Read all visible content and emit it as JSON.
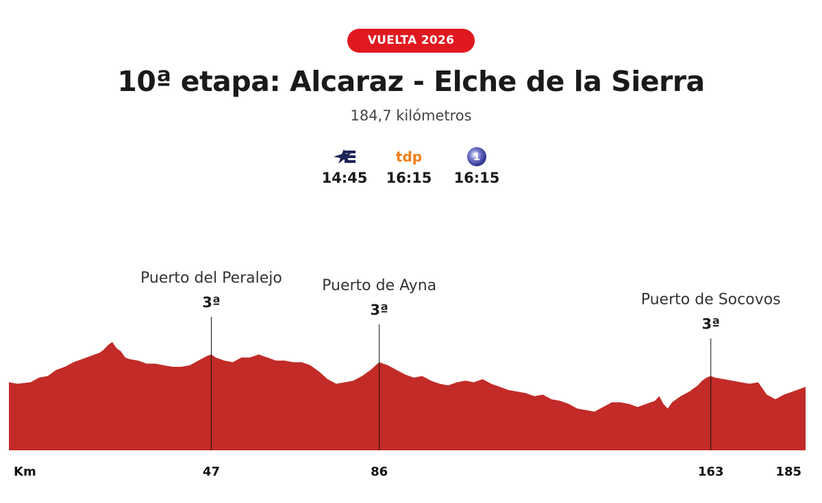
{
  "badge": "VUELTA 2026",
  "title": "10ª etapa: Alcaraz - Elche de la Sierra",
  "subtitle": "184,7 kilómetros",
  "broadcasters": [
    {
      "name": "Eurosport",
      "icon": "eurosport-logo-icon",
      "time": "14:45",
      "color": "#1e2459"
    },
    {
      "name": "tdp",
      "icon": "tdp-logo-icon",
      "time": "16:15",
      "color": "#f07d1a"
    },
    {
      "name": "La 1",
      "icon": "la1-logo-icon",
      "time": "16:15",
      "color": "#2a2f8a"
    }
  ],
  "chart_data": {
    "type": "area",
    "fill_color": "#c22b27",
    "axis_label": "Km",
    "x_total": 185,
    "xlim": [
      0,
      185
    ],
    "grid": false,
    "x_ticks": [
      {
        "km": 47,
        "label": "47"
      },
      {
        "km": 86,
        "label": "86"
      },
      {
        "km": 163,
        "label": "163"
      },
      {
        "km": 185,
        "label": "185"
      }
    ],
    "climbs": [
      {
        "name": "Puerto del Peralejo",
        "category": "3ª",
        "km": 47
      },
      {
        "name": "Puerto de Ayna",
        "category": "3ª",
        "km": 86
      },
      {
        "name": "Puerto de Socovos",
        "category": "3ª",
        "km": 163
      }
    ],
    "profile_relative": [
      [
        0,
        0.44
      ],
      [
        2,
        0.43
      ],
      [
        5,
        0.44
      ],
      [
        7,
        0.47
      ],
      [
        9,
        0.48
      ],
      [
        11,
        0.52
      ],
      [
        13,
        0.54
      ],
      [
        15,
        0.57
      ],
      [
        17,
        0.59
      ],
      [
        19,
        0.61
      ],
      [
        21,
        0.63
      ],
      [
        22,
        0.65
      ],
      [
        23,
        0.68
      ],
      [
        24,
        0.7
      ],
      [
        25,
        0.66
      ],
      [
        26,
        0.64
      ],
      [
        27,
        0.6
      ],
      [
        28,
        0.59
      ],
      [
        30,
        0.58
      ],
      [
        32,
        0.56
      ],
      [
        34,
        0.56
      ],
      [
        36,
        0.55
      ],
      [
        38,
        0.54
      ],
      [
        40,
        0.54
      ],
      [
        42,
        0.55
      ],
      [
        44,
        0.58
      ],
      [
        46,
        0.61
      ],
      [
        47,
        0.62
      ],
      [
        48,
        0.6
      ],
      [
        50,
        0.58
      ],
      [
        52,
        0.57
      ],
      [
        54,
        0.6
      ],
      [
        56,
        0.6
      ],
      [
        58,
        0.62
      ],
      [
        60,
        0.6
      ],
      [
        62,
        0.58
      ],
      [
        64,
        0.58
      ],
      [
        66,
        0.57
      ],
      [
        68,
        0.57
      ],
      [
        70,
        0.55
      ],
      [
        72,
        0.51
      ],
      [
        74,
        0.46
      ],
      [
        76,
        0.43
      ],
      [
        78,
        0.44
      ],
      [
        80,
        0.45
      ],
      [
        82,
        0.48
      ],
      [
        84,
        0.52
      ],
      [
        86,
        0.57
      ],
      [
        88,
        0.55
      ],
      [
        90,
        0.52
      ],
      [
        92,
        0.49
      ],
      [
        94,
        0.47
      ],
      [
        96,
        0.48
      ],
      [
        98,
        0.45
      ],
      [
        100,
        0.43
      ],
      [
        102,
        0.42
      ],
      [
        104,
        0.44
      ],
      [
        106,
        0.45
      ],
      [
        108,
        0.44
      ],
      [
        110,
        0.46
      ],
      [
        112,
        0.43
      ],
      [
        114,
        0.41
      ],
      [
        116,
        0.39
      ],
      [
        118,
        0.38
      ],
      [
        120,
        0.37
      ],
      [
        122,
        0.35
      ],
      [
        124,
        0.36
      ],
      [
        126,
        0.33
      ],
      [
        128,
        0.32
      ],
      [
        130,
        0.3
      ],
      [
        132,
        0.27
      ],
      [
        134,
        0.26
      ],
      [
        136,
        0.25
      ],
      [
        138,
        0.28
      ],
      [
        140,
        0.31
      ],
      [
        142,
        0.31
      ],
      [
        144,
        0.3
      ],
      [
        146,
        0.28
      ],
      [
        148,
        0.3
      ],
      [
        150,
        0.32
      ],
      [
        151,
        0.35
      ],
      [
        152,
        0.3
      ],
      [
        153,
        0.27
      ],
      [
        154,
        0.31
      ],
      [
        156,
        0.35
      ],
      [
        158,
        0.38
      ],
      [
        160,
        0.42
      ],
      [
        161,
        0.45
      ],
      [
        162,
        0.47
      ],
      [
        163,
        0.48
      ],
      [
        164,
        0.47
      ],
      [
        166,
        0.46
      ],
      [
        168,
        0.45
      ],
      [
        170,
        0.44
      ],
      [
        172,
        0.43
      ],
      [
        174,
        0.44
      ],
      [
        175,
        0.4
      ],
      [
        176,
        0.36
      ],
      [
        178,
        0.33
      ],
      [
        180,
        0.36
      ],
      [
        182,
        0.38
      ],
      [
        184,
        0.4
      ],
      [
        185,
        0.41
      ]
    ]
  }
}
